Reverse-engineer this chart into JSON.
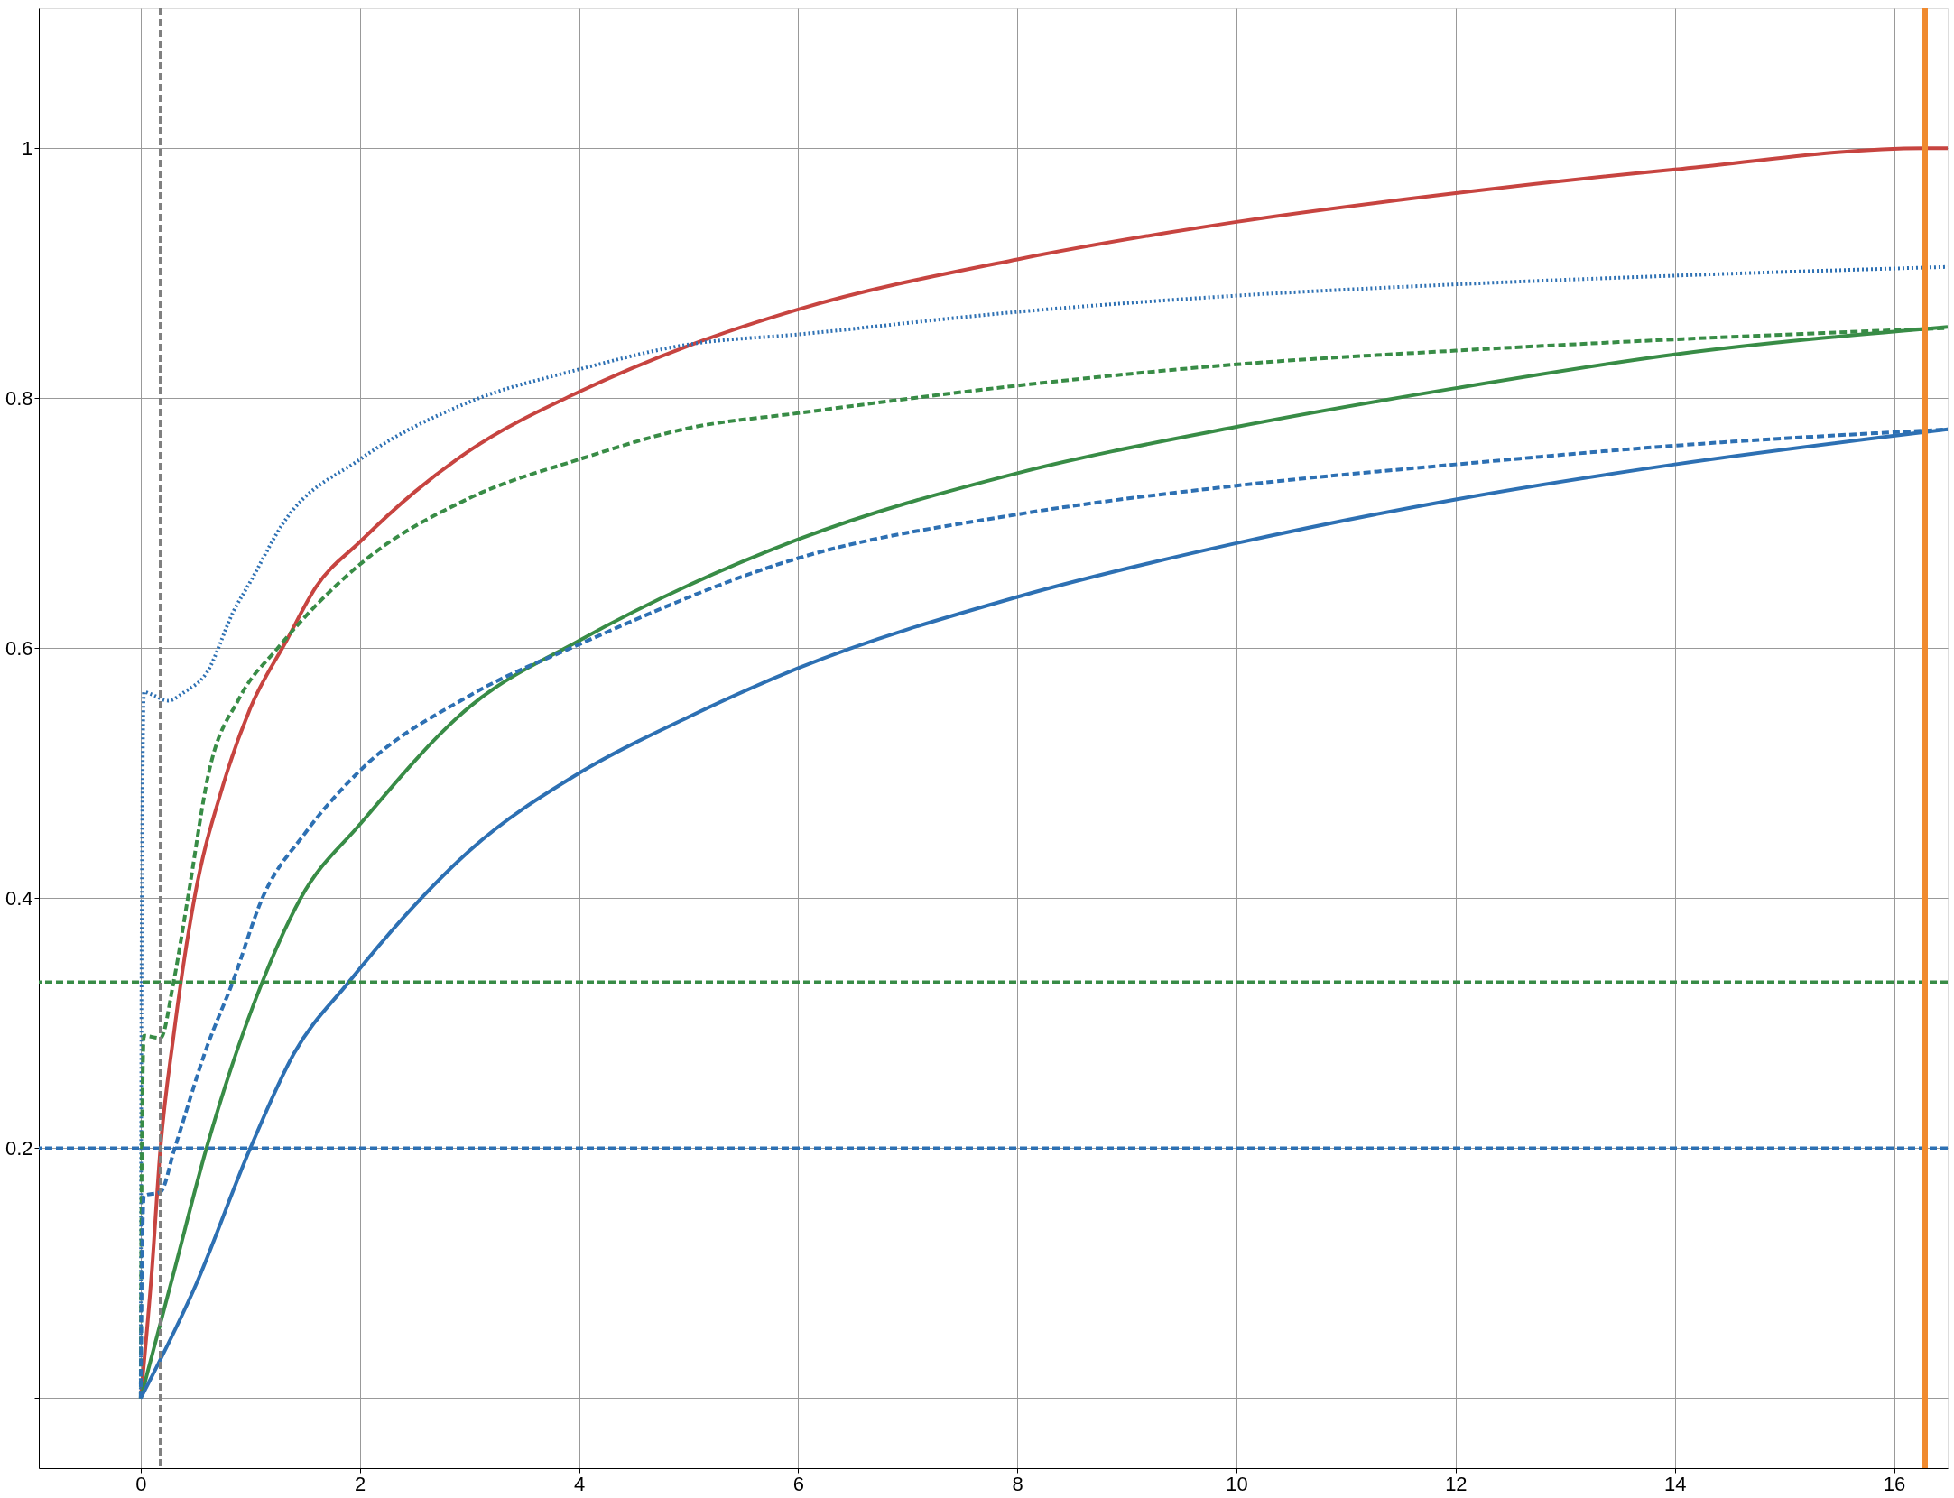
{
  "chart_data": {
    "type": "line",
    "xlim": [
      -0.93,
      16.49
    ],
    "ylim": [
      -0.056,
      1.112
    ],
    "xticks": [
      0,
      2,
      4,
      6,
      8,
      10,
      12,
      14,
      16
    ],
    "yticks": [
      {
        "value": 0,
        "label": null
      },
      0.2,
      0.4,
      0.6,
      0.8,
      1
    ],
    "grid": true,
    "series": [
      {
        "color": "#c74440",
        "line_style": "solid",
        "x": [
          0,
          0.1,
          0.18,
          0.3,
          0.49,
          0.75,
          1,
          1.33,
          1.6,
          2,
          2.5,
          3,
          4,
          5,
          6,
          8,
          10,
          12,
          14,
          16.28,
          16.49
        ],
        "values": [
          0,
          0.1,
          0.2,
          0.29,
          0.4,
          0.49,
          0.552,
          0.606,
          0.649,
          0.685,
          0.725,
          0.758,
          0.805,
          0.842,
          0.871,
          0.911,
          0.941,
          0.964,
          0.983,
          1.0,
          1.0
        ]
      },
      {
        "color": "#2d70b3",
        "line_style": "dotted",
        "x": [
          0,
          0.01,
          0.03,
          0.1,
          0.25,
          0.4,
          0.6,
          0.85,
          1,
          1.3,
          2,
          3,
          4,
          5,
          6,
          8,
          10,
          12,
          14,
          16.49
        ],
        "values": [
          0,
          0.4,
          0.565,
          0.563,
          0.558,
          0.565,
          0.58,
          0.63,
          0.653,
          0.7,
          0.751,
          0.797,
          0.823,
          0.843,
          0.851,
          0.869,
          0.882,
          0.891,
          0.898,
          0.905
        ]
      },
      {
        "color": "#388c46",
        "line_style": "dashed",
        "x": [
          0,
          0.01,
          0.03,
          0.18,
          0.3,
          0.43,
          0.62,
          0.9,
          1.25,
          2,
          3,
          4,
          5,
          6,
          8,
          10,
          12,
          14,
          16.49
        ],
        "values": [
          0,
          0.2,
          0.29,
          0.288,
          0.333,
          0.4,
          0.5,
          0.56,
          0.6,
          0.667,
          0.72,
          0.751,
          0.776,
          0.788,
          0.81,
          0.827,
          0.838,
          0.847,
          0.856
        ]
      },
      {
        "color": "#388c46",
        "line_style": "solid",
        "x": [
          0,
          0.3,
          0.6,
          1.11,
          1.46,
          2,
          3,
          4,
          6,
          8,
          10,
          12,
          14,
          16.49
        ],
        "values": [
          0,
          0.1,
          0.2,
          0.333,
          0.4,
          0.459,
          0.553,
          0.606,
          0.687,
          0.74,
          0.777,
          0.808,
          0.835,
          0.857
        ]
      },
      {
        "color": "#2d70b3",
        "line_style": "dashed",
        "x": [
          0,
          0.01,
          0.03,
          0.18,
          0.31,
          0.6,
          0.84,
          1.11,
          1.5,
          2,
          3,
          4,
          6,
          8,
          10,
          12,
          14,
          16.49
        ],
        "values": [
          0,
          0.1,
          0.162,
          0.165,
          0.2,
          0.28,
          0.333,
          0.4,
          0.452,
          0.502,
          0.562,
          0.603,
          0.672,
          0.707,
          0.73,
          0.747,
          0.762,
          0.775
        ]
      },
      {
        "color": "#2d70b3",
        "line_style": "solid",
        "x": [
          0,
          0.5,
          1,
          1.4,
          1.9,
          2.56,
          3,
          4,
          5,
          6,
          8,
          10,
          12,
          14,
          16.49
        ],
        "values": [
          0,
          0.09,
          0.2,
          0.276,
          0.333,
          0.4,
          0.438,
          0.5,
          0.545,
          0.584,
          0.641,
          0.684,
          0.719,
          0.747,
          0.775
        ]
      }
    ],
    "ref_lines": [
      {
        "axis": "y",
        "value": 0.333,
        "color": "#388c46",
        "line_style": "dashed"
      },
      {
        "axis": "y",
        "value": 0.2,
        "color": "#2d70b3",
        "line_style": "dashed"
      },
      {
        "axis": "x",
        "value": 0.18,
        "color": "#808080",
        "line_style": "dashed"
      },
      {
        "axis": "x",
        "value": 16.28,
        "color": "#f08a2f",
        "line_style": "solid"
      }
    ]
  }
}
